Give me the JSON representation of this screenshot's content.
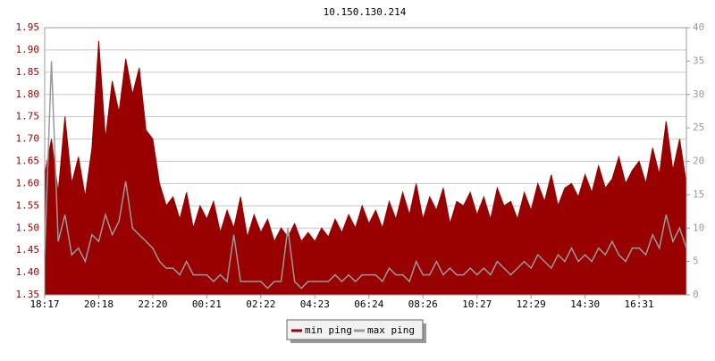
{
  "chart_data": {
    "type": "line",
    "title": "10.150.130.214",
    "categories": [
      "18:17",
      null,
      null,
      null,
      null,
      null,
      null,
      null,
      "20:18",
      null,
      null,
      null,
      null,
      null,
      null,
      null,
      "22:20",
      null,
      null,
      null,
      null,
      null,
      null,
      null,
      "00:21",
      null,
      null,
      null,
      null,
      null,
      null,
      null,
      "02:22",
      null,
      null,
      null,
      null,
      null,
      null,
      null,
      "04:23",
      null,
      null,
      null,
      null,
      null,
      null,
      null,
      "06:24",
      null,
      null,
      null,
      null,
      null,
      null,
      null,
      "08:26",
      null,
      null,
      null,
      null,
      null,
      null,
      null,
      "10:27",
      null,
      null,
      null,
      null,
      null,
      null,
      null,
      "12:29",
      null,
      null,
      null,
      null,
      null,
      null,
      null,
      "14:30",
      null,
      null,
      null,
      null,
      null,
      null,
      null,
      "16:31",
      null,
      null,
      null,
      null,
      null,
      null,
      null
    ],
    "series": [
      {
        "name": "min ping",
        "color": "#990000",
        "values": [
          1.62,
          1.7,
          1.58,
          1.75,
          1.6,
          1.66,
          1.57,
          1.68,
          1.92,
          1.7,
          1.83,
          1.76,
          1.88,
          1.8,
          1.86,
          1.72,
          1.7,
          1.6,
          1.55,
          1.57,
          1.52,
          1.58,
          1.5,
          1.55,
          1.52,
          1.56,
          1.49,
          1.54,
          1.5,
          1.57,
          1.48,
          1.53,
          1.49,
          1.52,
          1.47,
          1.5,
          1.48,
          1.51,
          1.47,
          1.49,
          1.47,
          1.5,
          1.48,
          1.52,
          1.49,
          1.53,
          1.5,
          1.55,
          1.51,
          1.54,
          1.5,
          1.56,
          1.52,
          1.58,
          1.53,
          1.6,
          1.52,
          1.57,
          1.54,
          1.59,
          1.51,
          1.56,
          1.55,
          1.58,
          1.53,
          1.57,
          1.52,
          1.59,
          1.55,
          1.56,
          1.52,
          1.58,
          1.54,
          1.6,
          1.56,
          1.62,
          1.55,
          1.59,
          1.6,
          1.57,
          1.62,
          1.58,
          1.64,
          1.59,
          1.61,
          1.66,
          1.6,
          1.63,
          1.65,
          1.6,
          1.68,
          1.62,
          1.74,
          1.63,
          1.7,
          1.6
        ]
      },
      {
        "name": "max ping",
        "color": "#999999",
        "axis": "y2",
        "values": [
          6,
          35,
          8,
          12,
          6,
          7,
          5,
          9,
          8,
          12,
          9,
          11,
          17,
          10,
          9,
          8,
          7,
          5,
          4,
          4,
          3,
          5,
          3,
          3,
          3,
          2,
          3,
          2,
          9,
          2,
          2,
          2,
          2,
          1,
          2,
          2,
          10,
          2,
          1,
          2,
          2,
          2,
          2,
          3,
          2,
          3,
          2,
          3,
          3,
          3,
          2,
          4,
          3,
          3,
          2,
          5,
          3,
          3,
          5,
          3,
          4,
          3,
          3,
          4,
          3,
          4,
          3,
          5,
          4,
          3,
          4,
          5,
          4,
          6,
          5,
          4,
          6,
          5,
          7,
          5,
          6,
          5,
          7,
          6,
          8,
          6,
          5,
          7,
          7,
          6,
          9,
          7,
          12,
          8,
          10,
          7
        ]
      }
    ],
    "ylim": [
      1.35,
      1.95
    ],
    "yticks": [
      {
        "value": 1.35,
        "label": "1.35"
      },
      {
        "value": 1.4,
        "label": "1.40"
      },
      {
        "value": 1.45,
        "label": "1.45"
      },
      {
        "value": 1.5,
        "label": "1.50"
      },
      {
        "value": 1.55,
        "label": "1.55"
      },
      {
        "value": 1.6,
        "label": "1.60"
      },
      {
        "value": 1.65,
        "label": "1.65"
      },
      {
        "value": 1.7,
        "label": "1.70"
      },
      {
        "value": 1.75,
        "label": "1.75"
      },
      {
        "value": 1.8,
        "label": "1.80"
      },
      {
        "value": 1.85,
        "label": "1.85"
      },
      {
        "value": 1.9,
        "label": "1.90"
      },
      {
        "value": 1.95,
        "label": "1.95"
      }
    ],
    "y2lim": [
      0,
      40
    ],
    "y2ticks": [
      0,
      5,
      10,
      15,
      20,
      25,
      30,
      35,
      40
    ],
    "grid": true
  }
}
